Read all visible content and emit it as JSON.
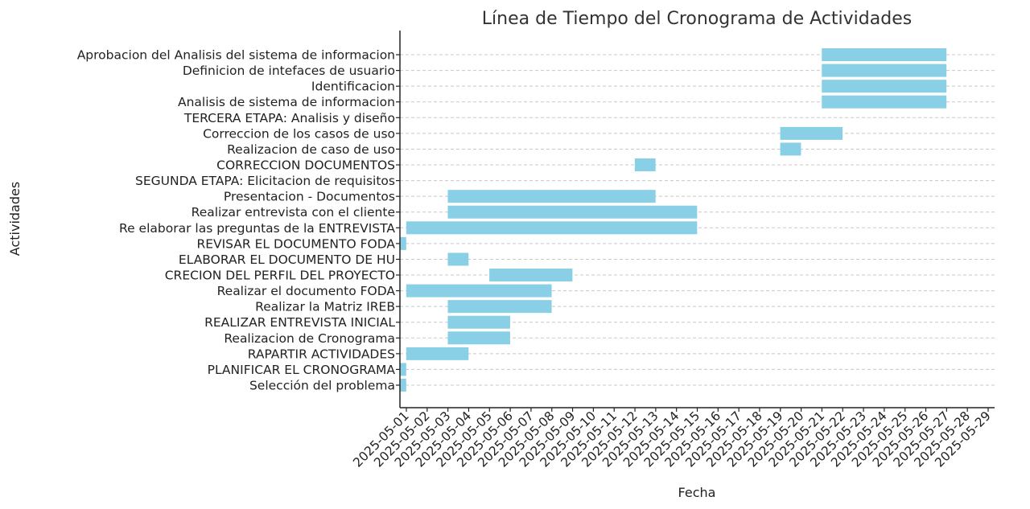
{
  "chart_data": {
    "type": "gantt",
    "title": "Línea de Tiempo del Cronograma de Actividades",
    "xlabel": "Fecha",
    "ylabel": "Actividades",
    "bar_color": "#89CFE6",
    "grid": "horizontal dashed",
    "xlim": [
      "2025-05-01",
      "2025-05-29"
    ],
    "x_ticks": [
      "2025-05-01",
      "2025-05-02",
      "2025-05-03",
      "2025-05-04",
      "2025-05-05",
      "2025-05-06",
      "2025-05-07",
      "2025-05-08",
      "2025-05-09",
      "2025-05-10",
      "2025-05-11",
      "2025-05-12",
      "2025-05-13",
      "2025-05-14",
      "2025-05-15",
      "2025-05-16",
      "2025-05-17",
      "2025-05-18",
      "2025-05-19",
      "2025-05-20",
      "2025-05-21",
      "2025-05-22",
      "2025-05-23",
      "2025-05-24",
      "2025-05-25",
      "2025-05-26",
      "2025-05-27",
      "2025-05-28",
      "2025-05-29"
    ],
    "tasks": [
      {
        "name": "Selección del problema",
        "start": "2025-05-01",
        "end": "2025-05-02"
      },
      {
        "name": "PLANIFICAR EL CRONOGRAMA",
        "start": "2025-05-01",
        "end": "2025-05-02"
      },
      {
        "name": "RAPARTIR ACTIVIDADES",
        "start": "2025-05-02",
        "end": "2025-05-05"
      },
      {
        "name": "Realizacion de Cronograma",
        "start": "2025-05-04",
        "end": "2025-05-07"
      },
      {
        "name": "REALIZAR ENTREVISTA INICIAL",
        "start": "2025-05-04",
        "end": "2025-05-07"
      },
      {
        "name": "Realizar la Matriz IREB",
        "start": "2025-05-04",
        "end": "2025-05-09"
      },
      {
        "name": "Realizar el documento FODA",
        "start": "2025-05-02",
        "end": "2025-05-09"
      },
      {
        "name": "CRECION DEL PERFIL DEL PROYECTO",
        "start": "2025-05-06",
        "end": "2025-05-10"
      },
      {
        "name": "ELABORAR EL DOCUMENTO DE HU",
        "start": "2025-05-04",
        "end": "2025-05-05"
      },
      {
        "name": "REVISAR EL DOCUMENTO FODA",
        "start": "2025-05-01",
        "end": "2025-05-02"
      },
      {
        "name": "Re elaborar las preguntas de la ENTREVISTA",
        "start": "2025-05-02",
        "end": "2025-05-16"
      },
      {
        "name": "Realizar entrevista con el cliente",
        "start": "2025-05-04",
        "end": "2025-05-16"
      },
      {
        "name": "Presentacion - Documentos",
        "start": "2025-05-04",
        "end": "2025-05-14"
      },
      {
        "name": "SEGUNDA ETAPA: Elicitacion de requisitos",
        "start": null,
        "end": null
      },
      {
        "name": "CORRECCION DOCUMENTOS",
        "start": "2025-05-13",
        "end": "2025-05-14"
      },
      {
        "name": "Realizacion de caso de uso",
        "start": "2025-05-20",
        "end": "2025-05-21"
      },
      {
        "name": "Correccion de los casos de uso",
        "start": "2025-05-20",
        "end": "2025-05-23"
      },
      {
        "name": "TERCERA ETAPA: Analisis y diseño",
        "start": null,
        "end": null
      },
      {
        "name": "Analisis de sistema de informacion",
        "start": "2025-05-22",
        "end": "2025-05-28"
      },
      {
        "name": "Identificacion",
        "start": "2025-05-22",
        "end": "2025-05-28"
      },
      {
        "name": "Definicion de intefaces de usuario",
        "start": "2025-05-22",
        "end": "2025-05-28"
      },
      {
        "name": "Aprobacion del Analisis del sistema de informacion",
        "start": "2025-05-22",
        "end": "2025-05-28"
      }
    ]
  }
}
